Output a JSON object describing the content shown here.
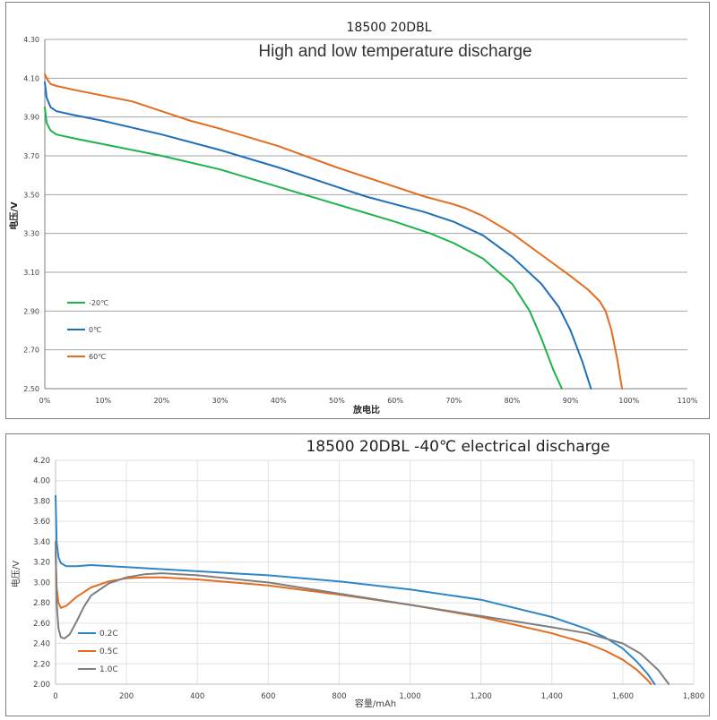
{
  "chart_data": [
    {
      "type": "line",
      "title": "18500 20DBL",
      "subtitle": "High and low temperature discharge",
      "xlabel": "放电比",
      "ylabel": "电压/V",
      "xlim": [
        0,
        110
      ],
      "ylim": [
        2.5,
        4.3
      ],
      "xticks": [
        "0%",
        "10%",
        "20%",
        "30%",
        "40%",
        "50%",
        "60%",
        "70%",
        "80%",
        "90%",
        "100%",
        "110%"
      ],
      "yticks": [
        "2.50",
        "2.70",
        "2.90",
        "3.10",
        "3.30",
        "3.50",
        "3.70",
        "3.90",
        "4.10",
        "4.30"
      ],
      "grid": "horizontal",
      "legend": "left",
      "series": [
        {
          "name": "-20℃",
          "color": "#1db34a",
          "x": [
            0,
            0.3,
            1,
            2,
            5,
            10,
            20,
            30,
            40,
            50,
            60,
            66,
            70,
            75,
            80,
            83,
            85,
            87,
            88.5
          ],
          "y": [
            3.95,
            3.87,
            3.83,
            3.81,
            3.79,
            3.76,
            3.7,
            3.63,
            3.54,
            3.45,
            3.36,
            3.3,
            3.25,
            3.17,
            3.04,
            2.9,
            2.76,
            2.6,
            2.5
          ]
        },
        {
          "name": "0℃",
          "color": "#1f6fb8",
          "x": [
            0,
            0.3,
            1,
            2,
            5,
            10,
            20,
            30,
            40,
            50,
            55,
            60,
            65,
            70,
            75,
            80,
            85,
            88,
            90,
            92,
            93.5
          ],
          "y": [
            4.08,
            4.0,
            3.95,
            3.93,
            3.91,
            3.88,
            3.81,
            3.73,
            3.64,
            3.54,
            3.49,
            3.45,
            3.41,
            3.36,
            3.29,
            3.18,
            3.04,
            2.92,
            2.8,
            2.64,
            2.5
          ]
        },
        {
          "name": "60℃",
          "color": "#e46c1f",
          "x": [
            0,
            0.5,
            1,
            2,
            5,
            10,
            15,
            20,
            25,
            30,
            40,
            50,
            60,
            65,
            70,
            72,
            75,
            80,
            85,
            90,
            93,
            95,
            96,
            97,
            98,
            98.8
          ],
          "y": [
            4.12,
            4.09,
            4.07,
            4.06,
            4.04,
            4.01,
            3.98,
            3.93,
            3.88,
            3.84,
            3.75,
            3.64,
            3.54,
            3.49,
            3.45,
            3.43,
            3.39,
            3.3,
            3.19,
            3.08,
            3.01,
            2.95,
            2.9,
            2.8,
            2.65,
            2.5
          ]
        }
      ]
    },
    {
      "type": "line",
      "title": "18500 20DBL -40℃ electrical discharge",
      "xlabel": "容量/mAh",
      "ylabel": "电压/V",
      "xlim": [
        0,
        1800
      ],
      "ylim": [
        2.0,
        4.2
      ],
      "xticks": [
        "0",
        "200",
        "400",
        "600",
        "800",
        "1,000",
        "1,200",
        "1,400",
        "1,600",
        "1,800"
      ],
      "yticks": [
        "2.00",
        "2.20",
        "2.40",
        "2.60",
        "2.80",
        "3.00",
        "3.20",
        "3.40",
        "3.60",
        "3.80",
        "4.00",
        "4.20"
      ],
      "grid": "both",
      "legend": "bottom-left",
      "series": [
        {
          "name": "0.2C",
          "color": "#2e86c8",
          "x": [
            0,
            3,
            8,
            15,
            30,
            60,
            100,
            200,
            400,
            600,
            800,
            1000,
            1200,
            1400,
            1500,
            1550,
            1600,
            1640,
            1670,
            1690
          ],
          "y": [
            3.85,
            3.4,
            3.25,
            3.19,
            3.16,
            3.16,
            3.17,
            3.15,
            3.11,
            3.07,
            3.01,
            2.93,
            2.83,
            2.66,
            2.54,
            2.46,
            2.35,
            2.22,
            2.1,
            2.0
          ]
        },
        {
          "name": "0.5C",
          "color": "#e46c1f",
          "x": [
            0,
            3,
            8,
            15,
            30,
            60,
            100,
            150,
            200,
            250,
            300,
            400,
            600,
            800,
            1000,
            1200,
            1400,
            1500,
            1550,
            1600,
            1640,
            1670,
            1680
          ],
          "y": [
            3.3,
            2.95,
            2.8,
            2.75,
            2.77,
            2.86,
            2.95,
            3.01,
            3.04,
            3.05,
            3.05,
            3.03,
            2.97,
            2.88,
            2.78,
            2.66,
            2.5,
            2.4,
            2.33,
            2.24,
            2.14,
            2.04,
            2.0
          ]
        },
        {
          "name": "1.0C",
          "color": "#7f7f7f",
          "x": [
            0,
            3,
            8,
            15,
            25,
            40,
            60,
            80,
            100,
            150,
            200,
            250,
            300,
            400,
            600,
            800,
            1000,
            1200,
            1400,
            1500,
            1600,
            1650,
            1700,
            1730
          ],
          "y": [
            3.4,
            2.8,
            2.55,
            2.46,
            2.45,
            2.49,
            2.62,
            2.76,
            2.87,
            2.99,
            3.05,
            3.08,
            3.09,
            3.07,
            3.0,
            2.89,
            2.78,
            2.67,
            2.56,
            2.5,
            2.4,
            2.3,
            2.14,
            2.0
          ]
        }
      ]
    }
  ]
}
